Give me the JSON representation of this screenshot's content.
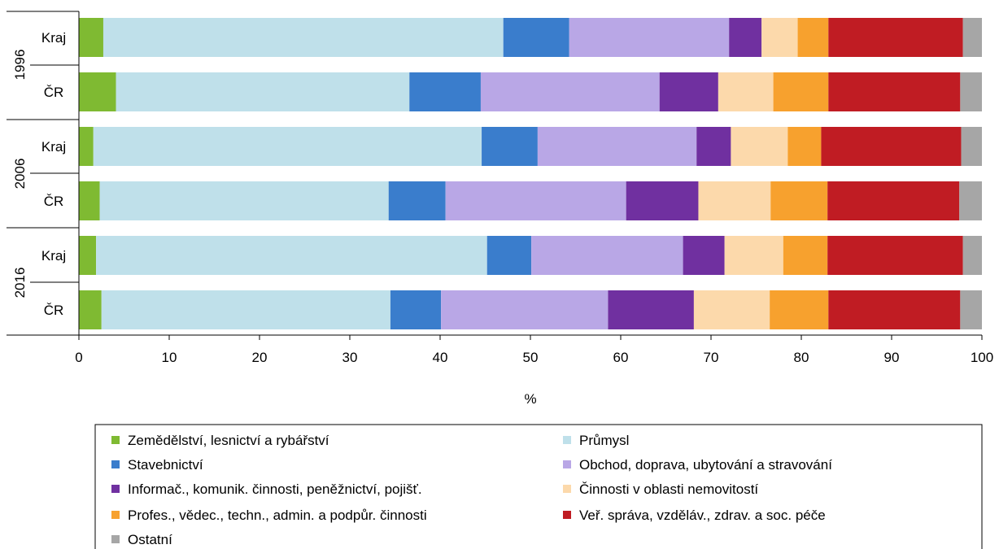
{
  "chart_data": {
    "type": "bar",
    "orientation": "horizontal",
    "stacked": true,
    "title": "",
    "xlabel": "%",
    "ylabel": "",
    "xlim": [
      0,
      100
    ],
    "xticks": [
      "0",
      "10",
      "20",
      "30",
      "40",
      "50",
      "60",
      "70",
      "80",
      "90",
      "100"
    ],
    "grid": false,
    "legend_position": "bottom",
    "groups": [
      {
        "label": "1996",
        "rows": [
          "Kraj",
          "ČR"
        ]
      },
      {
        "label": "2006",
        "rows": [
          "Kraj",
          "ČR"
        ]
      },
      {
        "label": "2016",
        "rows": [
          "Kraj",
          "ČR"
        ]
      }
    ],
    "series": [
      {
        "name": "Zemědělství, lesnictví a rybářství",
        "color": "#7fba32",
        "values": [
          2.7,
          4.1,
          1.6,
          2.3,
          1.9,
          2.5
        ]
      },
      {
        "name": "Průmysl",
        "color": "#bfe0ea",
        "values": [
          44.3,
          32.5,
          43.0,
          32.0,
          43.3,
          32.0
        ]
      },
      {
        "name": "Stavebnictví",
        "color": "#3a7dcc",
        "values": [
          7.3,
          7.9,
          6.2,
          6.3,
          4.9,
          5.6
        ]
      },
      {
        "name": "Obchod, doprava, ubytování a stravování",
        "color": "#b9a7e6",
        "values": [
          17.7,
          19.8,
          17.6,
          20.0,
          16.8,
          18.5
        ]
      },
      {
        "name": "Informač., komunik. činnosti, peněžnictví, pojišť.",
        "color": "#7030a0",
        "values": [
          3.6,
          6.5,
          3.8,
          8.0,
          4.6,
          9.5
        ]
      },
      {
        "name": "Činnosti v oblasti nemovitostí",
        "color": "#fcd9ab",
        "values": [
          4.0,
          6.1,
          6.3,
          8.0,
          6.5,
          8.4
        ]
      },
      {
        "name": "Profes., vědec., techn., admin. a podpůr. činnosti",
        "color": "#f7a12e",
        "values": [
          3.4,
          6.1,
          3.7,
          6.3,
          4.9,
          6.5
        ]
      },
      {
        "name": "Veř. správa, vzděláv., zdrav. a soc. péče",
        "color": "#c01c23",
        "values": [
          14.9,
          14.6,
          15.5,
          14.6,
          15.0,
          14.6
        ]
      },
      {
        "name": "Ostatní",
        "color": "#a6a6a6",
        "values": [
          2.1,
          2.4,
          2.3,
          2.5,
          2.1,
          2.4
        ]
      }
    ]
  }
}
